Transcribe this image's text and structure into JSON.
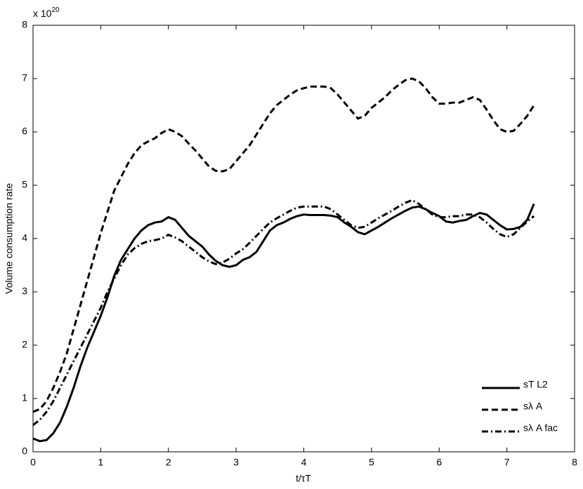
{
  "chart_data": {
    "type": "line",
    "x_label": "t/τT",
    "y_label": "Volume consumption rate",
    "y_multiplier": {
      "base": "x 10",
      "exponent": "20"
    },
    "xlim": [
      0,
      8
    ],
    "xticks": [
      0,
      1,
      2,
      3,
      4,
      5,
      6,
      7,
      8
    ],
    "ylim": [
      0,
      8
    ],
    "yticks": [
      0,
      1,
      2,
      3,
      4,
      5,
      6,
      7,
      8
    ],
    "grid": false,
    "legend_location": "lower right",
    "x": [
      0,
      0.1,
      0.2,
      0.3,
      0.4,
      0.5,
      0.6,
      0.7,
      0.8,
      0.9,
      1,
      1.1,
      1.2,
      1.3,
      1.4,
      1.5,
      1.6,
      1.7,
      1.8,
      1.9,
      2,
      2.1,
      2.2,
      2.3,
      2.4,
      2.5,
      2.6,
      2.7,
      2.8,
      2.9,
      3,
      3.1,
      3.2,
      3.3,
      3.4,
      3.5,
      3.6,
      3.7,
      3.8,
      3.9,
      4,
      4.1,
      4.2,
      4.3,
      4.4,
      4.5,
      4.6,
      4.7,
      4.8,
      4.9,
      5,
      5.1,
      5.2,
      5.3,
      5.4,
      5.5,
      5.6,
      5.7,
      5.8,
      5.9,
      6,
      6.1,
      6.2,
      6.3,
      6.4,
      6.5,
      6.6,
      6.7,
      6.8,
      6.9,
      7,
      7.1,
      7.2,
      7.3,
      7.4
    ],
    "series": [
      {
        "name": "sT L2",
        "color": "#000000",
        "line_style": "solid",
        "values": [
          0.25,
          0.2,
          0.22,
          0.35,
          0.55,
          0.85,
          1.2,
          1.6,
          1.95,
          2.25,
          2.55,
          2.9,
          3.3,
          3.6,
          3.8,
          4.0,
          4.15,
          4.25,
          4.3,
          4.32,
          4.4,
          4.35,
          4.2,
          4.05,
          3.95,
          3.85,
          3.7,
          3.58,
          3.5,
          3.47,
          3.5,
          3.6,
          3.65,
          3.75,
          3.95,
          4.15,
          4.25,
          4.3,
          4.37,
          4.42,
          4.45,
          4.44,
          4.44,
          4.44,
          4.43,
          4.4,
          4.3,
          4.22,
          4.12,
          4.08,
          4.15,
          4.22,
          4.3,
          4.38,
          4.45,
          4.52,
          4.58,
          4.6,
          4.55,
          4.48,
          4.42,
          4.32,
          4.3,
          4.33,
          4.35,
          4.42,
          4.48,
          4.45,
          4.35,
          4.25,
          4.17,
          4.18,
          4.22,
          4.35,
          4.65
        ]
      },
      {
        "name": "sλ A",
        "color": "#000000",
        "line_style": "dashed",
        "values": [
          0.75,
          0.8,
          0.95,
          1.2,
          1.5,
          1.85,
          2.3,
          2.75,
          3.2,
          3.65,
          4.1,
          4.5,
          4.9,
          5.15,
          5.4,
          5.6,
          5.75,
          5.82,
          5.88,
          5.98,
          6.05,
          6.0,
          5.92,
          5.78,
          5.65,
          5.5,
          5.35,
          5.27,
          5.26,
          5.3,
          5.45,
          5.6,
          5.75,
          5.95,
          6.15,
          6.35,
          6.5,
          6.6,
          6.7,
          6.78,
          6.82,
          6.85,
          6.85,
          6.85,
          6.82,
          6.7,
          6.55,
          6.4,
          6.25,
          6.3,
          6.45,
          6.55,
          6.65,
          6.78,
          6.88,
          6.97,
          7.0,
          6.95,
          6.82,
          6.65,
          6.53,
          6.53,
          6.55,
          6.55,
          6.6,
          6.65,
          6.6,
          6.42,
          6.22,
          6.05,
          6.0,
          6.02,
          6.15,
          6.3,
          6.5
        ]
      },
      {
        "name": "sλ A fac",
        "color": "#000000",
        "line_style": "dashdot",
        "values": [
          0.5,
          0.6,
          0.75,
          0.95,
          1.2,
          1.45,
          1.7,
          1.95,
          2.2,
          2.45,
          2.7,
          3.0,
          3.25,
          3.5,
          3.7,
          3.82,
          3.9,
          3.95,
          3.97,
          4.0,
          4.07,
          4.02,
          3.95,
          3.85,
          3.75,
          3.65,
          3.57,
          3.52,
          3.55,
          3.62,
          3.72,
          3.8,
          3.92,
          4.05,
          4.18,
          4.3,
          4.38,
          4.45,
          4.52,
          4.58,
          4.6,
          4.6,
          4.6,
          4.6,
          4.55,
          4.45,
          4.35,
          4.25,
          4.2,
          4.22,
          4.3,
          4.38,
          4.45,
          4.52,
          4.6,
          4.67,
          4.72,
          4.65,
          4.55,
          4.45,
          4.4,
          4.4,
          4.42,
          4.42,
          4.45,
          4.45,
          4.4,
          4.3,
          4.18,
          4.08,
          4.03,
          4.08,
          4.2,
          4.32,
          4.42
        ]
      }
    ]
  }
}
